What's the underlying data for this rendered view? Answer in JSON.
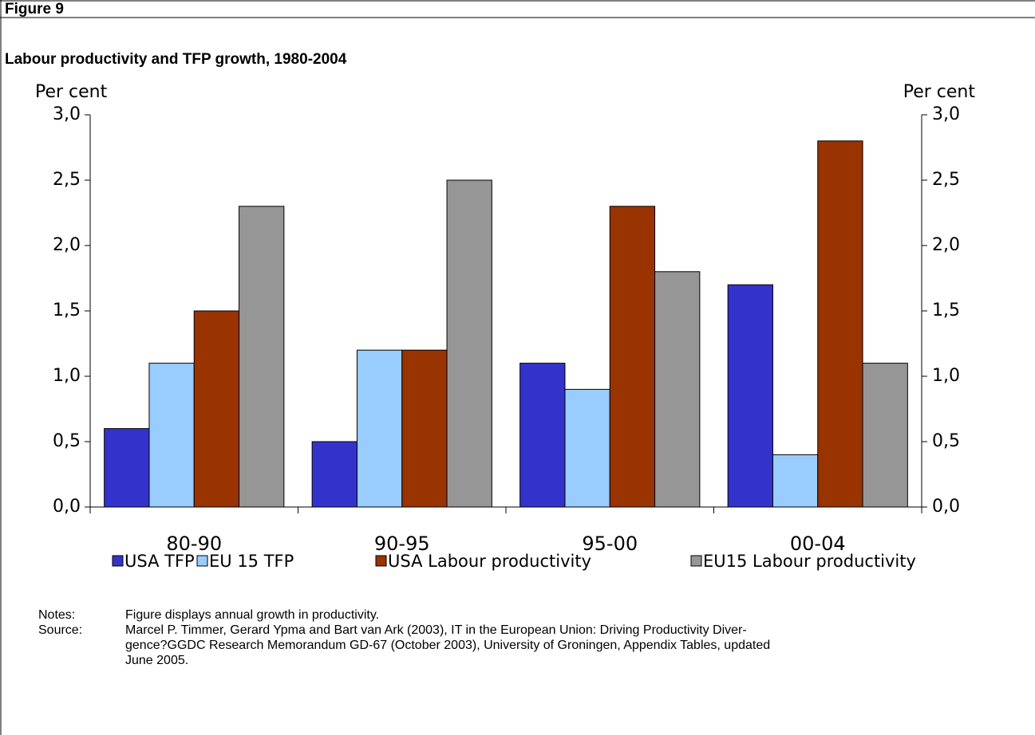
{
  "figure_label": "Figure 9",
  "chart_data": {
    "type": "bar",
    "title": "Labour productivity and TFP growth, 1980-2004",
    "y_label": "Per cent",
    "y2_label": "Per cent",
    "categories": [
      "80-90",
      "90-95",
      "95-00",
      "00-04"
    ],
    "series": [
      {
        "name": "USA TFP",
        "color": "#3333cc",
        "values": [
          0.6,
          0.5,
          1.1,
          1.7
        ]
      },
      {
        "name": "EU 15 TFP",
        "color": "#99ccff",
        "values": [
          1.1,
          1.2,
          0.9,
          0.4
        ]
      },
      {
        "name": "USA Labour productivity",
        "color": "#993300",
        "values": [
          1.5,
          1.2,
          2.3,
          2.8
        ]
      },
      {
        "name": "EU15 Labour productivity",
        "color": "#969696",
        "values": [
          2.3,
          2.5,
          1.8,
          1.1
        ]
      }
    ],
    "ylim": [
      0,
      3
    ],
    "yticks": [
      {
        "value": 0,
        "label": "0,0"
      },
      {
        "value": 0.5,
        "label": "0,5"
      },
      {
        "value": 1,
        "label": "1,0"
      },
      {
        "value": 1.5,
        "label": "1,5"
      },
      {
        "value": 2,
        "label": "2,0"
      },
      {
        "value": 2.5,
        "label": "2,5"
      },
      {
        "value": 3,
        "label": "3,0"
      }
    ],
    "y2lim": [
      0,
      3
    ],
    "y2ticks": [
      {
        "value": 0,
        "label": "0,0"
      },
      {
        "value": 0.5,
        "label": "0,5"
      },
      {
        "value": 1,
        "label": "1,0"
      },
      {
        "value": 1.5,
        "label": "1,5"
      },
      {
        "value": 2,
        "label": "2,0"
      },
      {
        "value": 2.5,
        "label": "2,5"
      },
      {
        "value": 3,
        "label": "3,0"
      }
    ],
    "legend": "bottom",
    "grid": false
  },
  "notes": {
    "label": "Notes:",
    "text": "Figure displays annual growth in productivity."
  },
  "source": {
    "label": "Source:",
    "lines": [
      "Marcel P. Timmer, Gerard Ypma and Bart van Ark (2003), IT in the European Union: Driving Productivity Diver-",
      "gence?GGDC Research Memorandum GD-67 (October 2003), University of Groningen, Appendix Tables, updated",
      "June 2005."
    ]
  }
}
